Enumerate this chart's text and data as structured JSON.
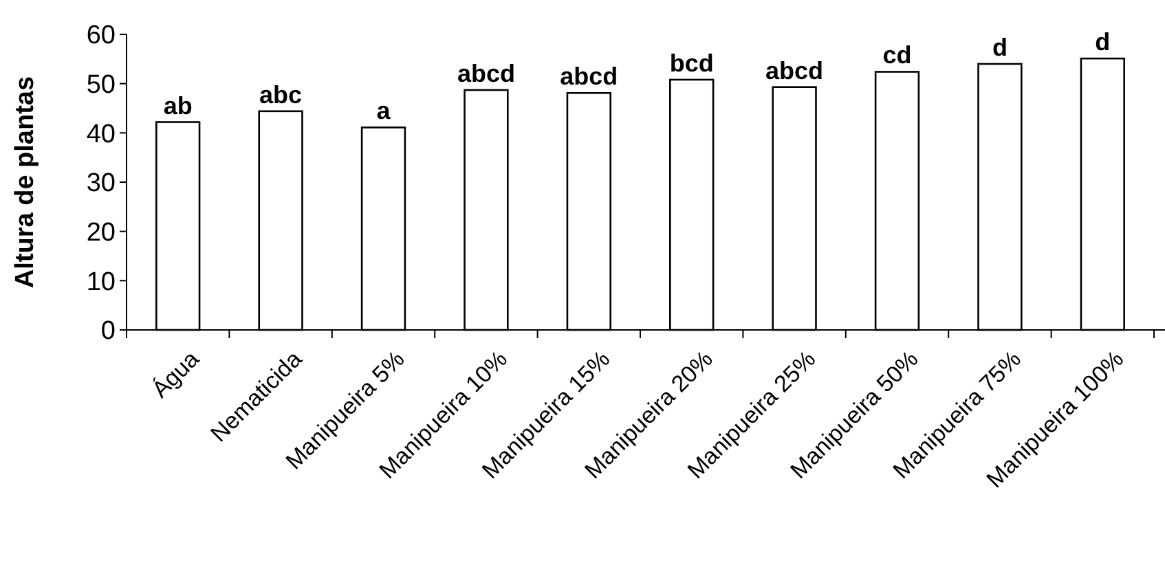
{
  "chart_data": {
    "type": "bar",
    "ylabel": "Altura de plantas",
    "categories": [
      "Água",
      "Nematicida",
      "Manipueira 5%",
      "Manipueira 10%",
      "Manipueira 15%",
      "Manipueira 20%",
      "Manipueira 25%",
      "Manipueira 50%",
      "Manipueira 75%",
      "Manipueira 100%"
    ],
    "values": [
      42.2,
      44.4,
      41.1,
      48.7,
      48.1,
      50.8,
      49.3,
      52.4,
      54.0,
      55.1
    ],
    "color": "#ffffff",
    "ylim": [
      0,
      60
    ],
    "yticks": [
      0,
      10,
      20,
      30,
      40,
      50,
      60
    ],
    "grid": false,
    "annotations": [
      {
        "text": "ab",
        "x": "Água",
        "y": 42.2
      },
      {
        "text": "abc",
        "x": "Nematicida",
        "y": 44.4
      },
      {
        "text": "a",
        "x": "Manipueira 5%",
        "y": 41.1
      },
      {
        "text": "abcd",
        "x": "Manipueira 10%",
        "y": 48.7
      },
      {
        "text": "abcd",
        "x": "Manipueira 15%",
        "y": 48.1
      },
      {
        "text": "bcd",
        "x": "Manipueira 20%",
        "y": 50.8
      },
      {
        "text": "abcd",
        "x": "Manipueira 25%",
        "y": 49.3
      },
      {
        "text": "cd",
        "x": "Manipueira 50%",
        "y": 52.4
      },
      {
        "text": "d",
        "x": "Manipueira 75%",
        "y": 54.0
      },
      {
        "text": "d",
        "x": "Manipueira 100%",
        "y": 55.1
      }
    ]
  }
}
